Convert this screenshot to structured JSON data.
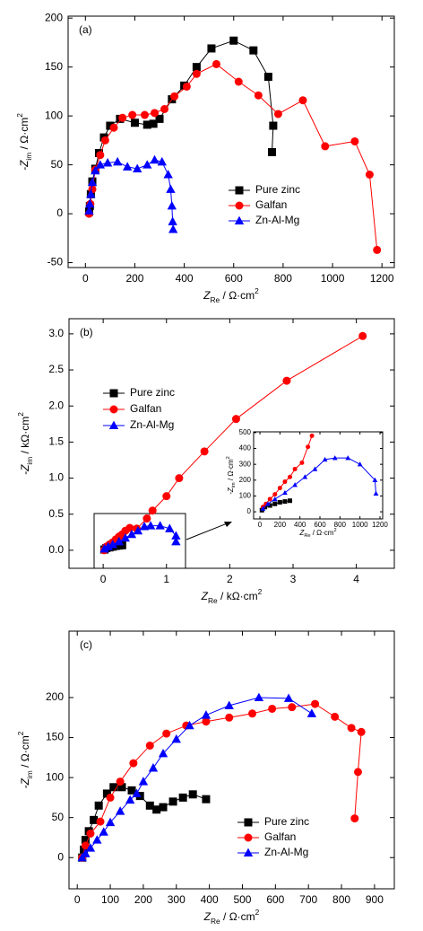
{
  "chart_data": [
    {
      "type": "line",
      "panel_label": "(a)",
      "x_label": [
        "Z",
        "Re",
        " / Ω·cm",
        "2"
      ],
      "y_label": [
        "-Z",
        "im",
        " / Ω·cm",
        "2"
      ],
      "xlim": [
        -70,
        1250
      ],
      "xticks": [
        0,
        200,
        400,
        600,
        800,
        1000,
        1200
      ],
      "ylim": [
        -55,
        202
      ],
      "yticks": [
        -50,
        0,
        50,
        100,
        150,
        200
      ],
      "series": [
        {
          "name": "Pure zinc",
          "color": "#000000",
          "marker": "square",
          "x": [
            15,
            18,
            22,
            28,
            40,
            55,
            75,
            100,
            140,
            200,
            250,
            275,
            300,
            350,
            400,
            450,
            510,
            600,
            680,
            740,
            760,
            755
          ],
          "y": [
            2,
            8,
            20,
            33,
            46,
            62,
            78,
            90,
            97,
            93,
            91,
            92,
            97,
            117,
            131,
            150,
            169,
            177,
            167,
            140,
            90,
            63
          ]
        },
        {
          "name": "Galfan",
          "color": "#ff0000",
          "marker": "circle",
          "x": [
            15,
            20,
            28,
            40,
            60,
            80,
            115,
            150,
            190,
            240,
            280,
            320,
            360,
            410,
            450,
            530,
            620,
            700,
            780,
            880,
            970,
            1090,
            1150,
            1180
          ],
          "y": [
            0,
            10,
            25,
            45,
            60,
            75,
            88,
            98,
            101,
            101,
            103,
            107,
            120,
            130,
            143,
            153,
            135,
            121,
            102,
            116,
            69,
            74,
            40,
            -37
          ]
        },
        {
          "name": "Zn-Al-Mg",
          "color": "#0000ff",
          "marker": "triangle",
          "x": [
            15,
            18,
            22,
            28,
            40,
            60,
            90,
            130,
            170,
            210,
            250,
            280,
            310,
            335,
            345,
            350,
            353,
            355
          ],
          "y": [
            3,
            10,
            20,
            32,
            44,
            50,
            52,
            53,
            48,
            46,
            50,
            55,
            53,
            40,
            25,
            8,
            -8,
            -16
          ]
        }
      ]
    },
    {
      "type": "line",
      "panel_label": "(b)",
      "x_label": [
        "Z",
        "Re",
        " / kΩ·cm",
        "2"
      ],
      "y_label": [
        "-Z",
        "im",
        " / kΩ·cm",
        "2"
      ],
      "xlim": [
        -0.54,
        4.6
      ],
      "xticks": [
        0,
        1,
        2,
        3,
        4
      ],
      "ylim": [
        -0.25,
        3.21
      ],
      "yticks": [
        {
          "value": 0,
          "label": "0.0"
        },
        {
          "value": 0.5,
          "label": "0.5"
        },
        {
          "value": 1,
          "label": "1.0"
        },
        {
          "value": 1.5,
          "label": "1.5"
        },
        {
          "value": 2,
          "label": "2.0"
        },
        {
          "value": 2.5,
          "label": "2.5"
        },
        {
          "value": 3,
          "label": "3.0"
        }
      ],
      "series": [
        {
          "name": "Pure zinc",
          "color": "#000000",
          "marker": "square",
          "x": [
            0.02,
            0.05,
            0.1,
            0.15,
            0.2,
            0.25,
            0.3
          ],
          "y": [
            0.01,
            0.03,
            0.04,
            0.05,
            0.06,
            0.065,
            0.07
          ]
        },
        {
          "name": "Galfan",
          "color": "#ff0000",
          "marker": "circle",
          "x": [
            0.015,
            0.05,
            0.1,
            0.15,
            0.2,
            0.25,
            0.3,
            0.35,
            0.42,
            0.53,
            0.69,
            0.78,
            1.0,
            1.2,
            1.6,
            2.1,
            2.9,
            4.1
          ],
          "y": [
            0,
            0.05,
            0.08,
            0.11,
            0.15,
            0.19,
            0.22,
            0.27,
            0.31,
            0.3,
            0.44,
            0.55,
            0.75,
            1.0,
            1.37,
            1.82,
            2.35,
            2.97
          ]
        },
        {
          "name": "Zn-Al-Mg",
          "color": "#0000ff",
          "marker": "triangle",
          "x": [
            0.02,
            0.08,
            0.15,
            0.25,
            0.35,
            0.45,
            0.55,
            0.65,
            0.75,
            0.9,
            1.05,
            1.15,
            1.15
          ],
          "y": [
            0.02,
            0.05,
            0.08,
            0.12,
            0.17,
            0.22,
            0.27,
            0.33,
            0.34,
            0.34,
            0.3,
            0.2,
            0.12
          ]
        }
      ]
    },
    {
      "type": "line",
      "x_label": [
        "Z",
        "Re",
        " / Ω·cm",
        "2"
      ],
      "y_label": [
        "-Z",
        "im",
        " / Ω·cm",
        "2"
      ],
      "xlim": [
        -63,
        1227
      ],
      "xticks": [
        0,
        200,
        400,
        600,
        800,
        1000,
        1200
      ],
      "ylim": [
        -45,
        505
      ],
      "yticks": [
        0,
        100,
        200,
        300,
        400,
        500
      ],
      "series": [
        {
          "color": "#000000",
          "marker": "square",
          "x": [
            20,
            50,
            100,
            150,
            200,
            250,
            300
          ],
          "y": [
            10,
            30,
            40,
            50,
            60,
            65,
            70
          ]
        },
        {
          "color": "#ff0000",
          "marker": "circle",
          "x": [
            30,
            60,
            100,
            150,
            200,
            250,
            300,
            350,
            420,
            480,
            520
          ],
          "y": [
            30,
            50,
            80,
            110,
            150,
            190,
            220,
            270,
            310,
            410,
            480
          ]
        },
        {
          "color": "#0000ff",
          "marker": "triangle",
          "x": [
            30,
            80,
            150,
            250,
            350,
            450,
            550,
            650,
            750,
            880,
            1000,
            1150,
            1160
          ],
          "y": [
            20,
            50,
            80,
            120,
            170,
            220,
            270,
            330,
            340,
            340,
            300,
            200,
            115
          ]
        }
      ]
    },
    {
      "type": "line",
      "panel_label": "(c)",
      "x_label": [
        "Z",
        "Re",
        " / Ω·cm",
        "2"
      ],
      "y_label": [
        "-Z",
        "im",
        " / Ω·cm",
        "2"
      ],
      "xlim": [
        -25,
        960
      ],
      "xticks": [
        0,
        100,
        200,
        300,
        400,
        500,
        600,
        700,
        800,
        900
      ],
      "ylim": [
        -39,
        283
      ],
      "yticks": [
        0,
        50,
        100,
        150,
        200
      ],
      "series": [
        {
          "name": "Pure zinc",
          "color": "#000000",
          "marker": "square",
          "x": [
            15,
            20,
            25,
            35,
            50,
            65,
            90,
            110,
            135,
            165,
            190,
            220,
            240,
            260,
            290,
            320,
            350,
            390
          ],
          "y": [
            0,
            10,
            22,
            33,
            47,
            65,
            80,
            88,
            88,
            84,
            77,
            65,
            60,
            63,
            70,
            75,
            79,
            73
          ]
        },
        {
          "name": "Galfan",
          "color": "#ff0000",
          "marker": "circle",
          "x": [
            15,
            25,
            40,
            70,
            100,
            130,
            170,
            220,
            270,
            330,
            390,
            460,
            530,
            590,
            650,
            720,
            780,
            830,
            860,
            850,
            840
          ],
          "y": [
            0,
            15,
            30,
            45,
            75,
            95,
            118,
            140,
            155,
            165,
            170,
            175,
            180,
            186,
            188,
            192,
            176,
            162,
            157,
            107,
            49
          ]
        },
        {
          "name": "Zn-Al-Mg",
          "color": "#0000ff",
          "marker": "triangle",
          "x": [
            15,
            25,
            40,
            60,
            80,
            100,
            130,
            160,
            180,
            200,
            230,
            260,
            300,
            340,
            390,
            460,
            550,
            640,
            710
          ],
          "y": [
            0,
            5,
            12,
            22,
            32,
            44,
            58,
            72,
            80,
            95,
            112,
            130,
            148,
            165,
            178,
            190,
            200,
            199,
            180
          ]
        }
      ]
    }
  ]
}
